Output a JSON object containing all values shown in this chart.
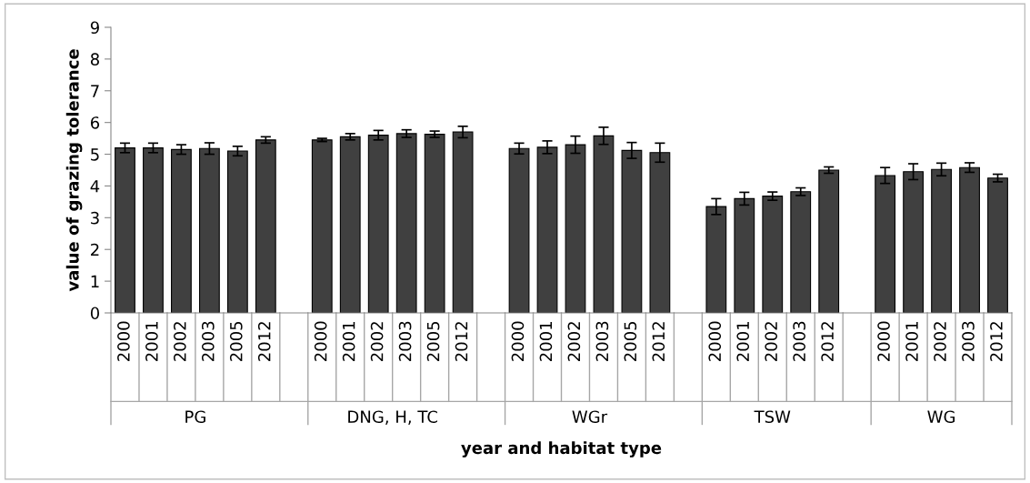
{
  "chart_data": {
    "type": "bar",
    "xlabel": "year and habitat type",
    "ylabel": "value of grazing tolerance",
    "categories": [
      "2000",
      "2001",
      "2002",
      "2003",
      "2005",
      "2012",
      null,
      "2000",
      "2001",
      "2002",
      "2003",
      "2005",
      "2012",
      null,
      "2000",
      "2001",
      "2002",
      "2003",
      "2005",
      "2012",
      null,
      "2000",
      "2001",
      "2002",
      "2003",
      "2012",
      null,
      "2000",
      "2001",
      "2002",
      "2003",
      "2012"
    ],
    "values": [
      5.2,
      5.2,
      5.15,
      5.18,
      5.1,
      5.45,
      null,
      5.45,
      5.55,
      5.6,
      5.65,
      5.63,
      5.7,
      null,
      5.18,
      5.22,
      5.3,
      5.58,
      5.12,
      5.05,
      null,
      3.35,
      3.6,
      3.68,
      3.82,
      4.5,
      null,
      4.33,
      4.45,
      4.52,
      4.58,
      4.25
    ],
    "errors": [
      0.15,
      0.15,
      0.15,
      0.18,
      0.15,
      0.1,
      null,
      0.05,
      0.1,
      0.15,
      0.12,
      0.1,
      0.18,
      null,
      0.17,
      0.2,
      0.27,
      0.27,
      0.25,
      0.3,
      null,
      0.25,
      0.2,
      0.13,
      0.12,
      0.1,
      null,
      0.25,
      0.25,
      0.2,
      0.15,
      0.12
    ],
    "color": "#404040",
    "annotations": [
      "PG",
      "DNG, H, TC",
      "WGr",
      "TSW",
      "WG"
    ],
    "ylim": [
      0,
      9
    ],
    "yticks": [
      0,
      1,
      2,
      3,
      4,
      5,
      6,
      7,
      8,
      9
    ],
    "grid": false,
    "legend": false
  }
}
